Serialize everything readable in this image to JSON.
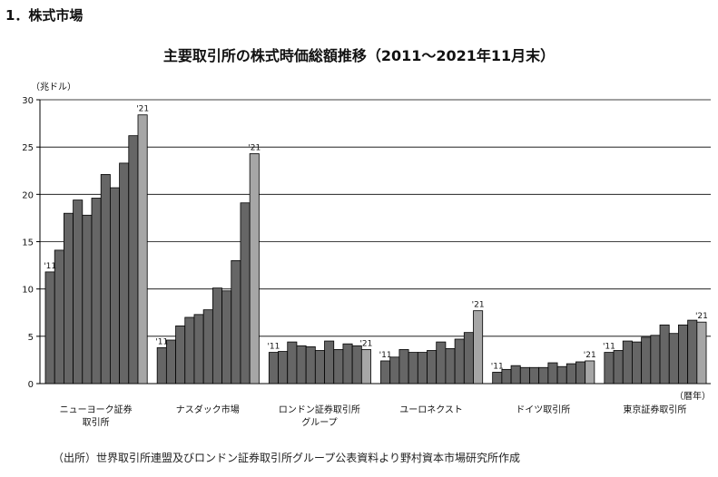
{
  "section": {
    "heading": "1．株式市場"
  },
  "source_note": "（出所）世界取引所連盟及びロンドン証券取引所グループ公表資料より野村資本市場研究所作成",
  "colors": {
    "bar": "#666666",
    "bar_last": "#a6a6a6",
    "grid": "#000000"
  },
  "chart_data": {
    "type": "bar",
    "title": "主要取引所の株式時価総額推移（2011〜2021年11月末）",
    "ylabel": "（兆ドル）",
    "xlabel": "（暦年）",
    "ylim": [
      0,
      30
    ],
    "yticks": [
      0,
      5,
      10,
      15,
      20,
      25,
      30
    ],
    "grid": true,
    "x": [
      "2011",
      "2012",
      "2013",
      "2014",
      "2015",
      "2016",
      "2017",
      "2018",
      "2019",
      "2020",
      "2021"
    ],
    "first_label": "'11",
    "last_label": "'21",
    "groups": [
      {
        "name": "ニューヨーク証券取引所",
        "label_lines": [
          "ニューヨーク証券",
          "取引所"
        ],
        "values": [
          11.8,
          14.1,
          18.0,
          19.4,
          17.8,
          19.6,
          22.1,
          20.7,
          23.3,
          26.2,
          28.4
        ]
      },
      {
        "name": "ナスダック市場",
        "label_lines": [
          "ナスダック市場"
        ],
        "values": [
          3.8,
          4.6,
          6.1,
          7.0,
          7.3,
          7.8,
          10.1,
          9.8,
          13.0,
          19.1,
          24.3
        ]
      },
      {
        "name": "ロンドン証券取引所グループ",
        "label_lines": [
          "ロンドン証券取引所",
          "グループ"
        ],
        "values": [
          3.3,
          3.4,
          4.4,
          4.0,
          3.9,
          3.5,
          4.5,
          3.6,
          4.2,
          4.0,
          3.6
        ]
      },
      {
        "name": "ユーロネクスト",
        "label_lines": [
          "ユーロネクスト"
        ],
        "values": [
          2.4,
          2.8,
          3.6,
          3.3,
          3.3,
          3.5,
          4.4,
          3.7,
          4.7,
          5.4,
          7.7
        ]
      },
      {
        "name": "ドイツ取引所",
        "label_lines": [
          "ドイツ取引所"
        ],
        "values": [
          1.2,
          1.5,
          1.9,
          1.7,
          1.7,
          1.7,
          2.2,
          1.8,
          2.1,
          2.3,
          2.4
        ]
      },
      {
        "name": "東京証券取引所",
        "label_lines": [
          "東京証券取引所"
        ],
        "values": [
          3.3,
          3.5,
          4.5,
          4.4,
          4.9,
          5.1,
          6.2,
          5.3,
          6.2,
          6.7,
          6.5
        ]
      }
    ]
  }
}
